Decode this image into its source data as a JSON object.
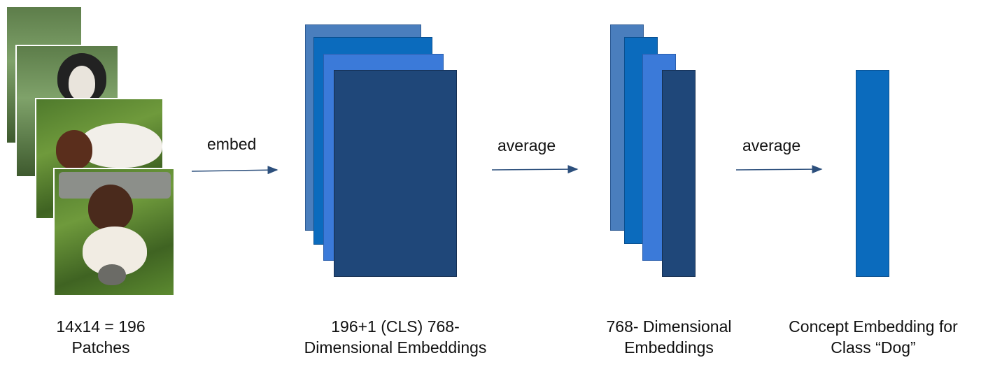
{
  "colors": {
    "stack_light": "#4a7ebd",
    "stack_mid": "#0b6bbd",
    "stack_bright": "#3b7ad9",
    "stack_dark": "#1f4779",
    "arrow": "#2c4f7c",
    "concept_bar": "#0b6bbd"
  },
  "arrows": {
    "embed": "embed",
    "average1": "average",
    "average2": "average"
  },
  "labels": {
    "patches_line1": "14x14 = 196",
    "patches_line2": "Patches",
    "embeddings_line1": "196+1 (CLS) 768-",
    "embeddings_line2": "Dimensional Embeddings",
    "dim_line1": "768- Dimensional",
    "dim_line2": "Embeddings",
    "concept_line1": "Concept Embedding for",
    "concept_line2": "Class “Dog”"
  }
}
